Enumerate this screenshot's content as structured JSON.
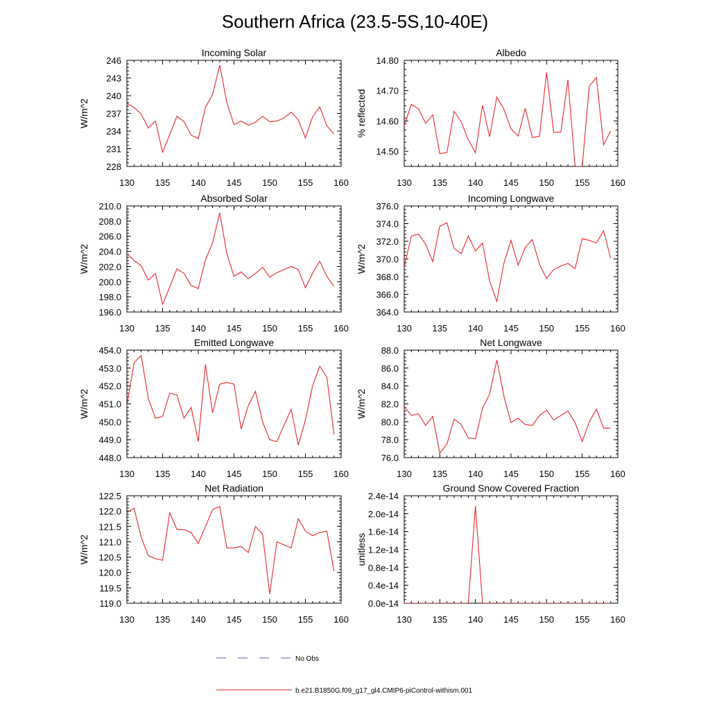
{
  "title": "Southern Africa (23.5-5S,10-40E)",
  "legend": {
    "items": [
      {
        "label": "No Obs",
        "color": "#5b5bd6",
        "style": "dashed"
      },
      {
        "label": "b.e21.B1850G.f09_g17_gl4.CMIP6-piControl-withism.001",
        "color": "#e8252a",
        "style": "solid"
      }
    ]
  },
  "chart_data": [
    {
      "type": "line",
      "title": "Incoming Solar",
      "ylabel": "W/m^2",
      "xlim": [
        130,
        160
      ],
      "ylim": [
        228,
        246
      ],
      "xticks": [
        "130",
        "135",
        "140",
        "145",
        "150",
        "155",
        "160"
      ],
      "yticks": [
        "228",
        "231",
        "234",
        "237",
        "240",
        "243",
        "246"
      ],
      "x": [
        130,
        131,
        132,
        133,
        134,
        135,
        136,
        137,
        138,
        139,
        140,
        141,
        142,
        143,
        144,
        145,
        146,
        147,
        148,
        149,
        150,
        151,
        152,
        153,
        154,
        155,
        156,
        157,
        158,
        159
      ],
      "series": [
        {
          "values": [
            238.7,
            238.0,
            236.9,
            234.5,
            235.7,
            230.4,
            233.4,
            236.5,
            235.6,
            233.3,
            232.7,
            238.0,
            240.2,
            245.2,
            238.8,
            235.1,
            235.7,
            235.0,
            235.5,
            236.5,
            235.6,
            235.7,
            236.2,
            237.2,
            235.9,
            232.8,
            236.4,
            238.1,
            234.9,
            233.5
          ]
        }
      ]
    },
    {
      "type": "line",
      "title": "Albedo",
      "ylabel": "% reflected",
      "xlim": [
        130,
        160
      ],
      "ylim": [
        14.45,
        14.8
      ],
      "xticks": [
        "130",
        "135",
        "140",
        "145",
        "150",
        "155",
        "160"
      ],
      "yticks": [
        "14.50",
        "14.60",
        "14.70",
        "14.80"
      ],
      "x": [
        130,
        131,
        132,
        133,
        134,
        135,
        136,
        137,
        138,
        139,
        140,
        141,
        142,
        143,
        144,
        145,
        146,
        147,
        148,
        149,
        150,
        151,
        152,
        153,
        154,
        155,
        156,
        157,
        158,
        159
      ],
      "series": [
        {
          "values": [
            14.585,
            14.655,
            14.64,
            14.592,
            14.62,
            14.492,
            14.496,
            14.632,
            14.597,
            14.538,
            14.495,
            14.652,
            14.548,
            14.679,
            14.639,
            14.574,
            14.55,
            14.642,
            14.545,
            14.55,
            14.76,
            14.562,
            14.564,
            14.736,
            14.45,
            14.45,
            14.715,
            14.743,
            14.521,
            14.567
          ]
        }
      ]
    },
    {
      "type": "line",
      "title": "Absorbed Solar",
      "ylabel": "W/m^2",
      "xlim": [
        130,
        160
      ],
      "ylim": [
        196,
        210
      ],
      "xticks": [
        "130",
        "135",
        "140",
        "145",
        "150",
        "155",
        "160"
      ],
      "yticks": [
        "196.0",
        "198.0",
        "200.0",
        "202.0",
        "204.0",
        "206.0",
        "208.0",
        "210.0"
      ],
      "x": [
        130,
        131,
        132,
        133,
        134,
        135,
        136,
        137,
        138,
        139,
        140,
        141,
        142,
        143,
        144,
        145,
        146,
        147,
        148,
        149,
        150,
        151,
        152,
        153,
        154,
        155,
        156,
        157,
        158,
        159
      ],
      "series": [
        {
          "values": [
            203.7,
            202.8,
            202.1,
            200.2,
            201.1,
            197.0,
            199.3,
            201.7,
            201.1,
            199.5,
            199.1,
            202.9,
            205.1,
            209.1,
            203.7,
            200.7,
            201.3,
            200.4,
            201.1,
            201.9,
            200.6,
            201.2,
            201.6,
            202.0,
            201.6,
            199.2,
            201.1,
            202.7,
            200.7,
            199.4
          ]
        }
      ]
    },
    {
      "type": "line",
      "title": "Incoming Longwave",
      "ylabel": "W/m^2",
      "xlim": [
        130,
        160
      ],
      "ylim": [
        364,
        376
      ],
      "xticks": [
        "130",
        "135",
        "140",
        "145",
        "150",
        "155",
        "160"
      ],
      "yticks": [
        "364.0",
        "366.0",
        "368.0",
        "370.0",
        "372.0",
        "374.0",
        "376.0"
      ],
      "x": [
        130,
        131,
        132,
        133,
        134,
        135,
        136,
        137,
        138,
        139,
        140,
        141,
        142,
        143,
        144,
        145,
        146,
        147,
        148,
        149,
        150,
        151,
        152,
        153,
        154,
        155,
        156,
        157,
        158,
        159
      ],
      "series": [
        {
          "values": [
            369.1,
            372.6,
            372.8,
            371.7,
            369.7,
            373.7,
            374.1,
            371.2,
            370.6,
            372.6,
            370.9,
            371.8,
            367.5,
            365.2,
            369.5,
            372.1,
            369.3,
            371.3,
            372.2,
            369.4,
            367.8,
            368.8,
            369.2,
            369.5,
            368.9,
            372.3,
            372.1,
            371.8,
            373.2,
            370.1
          ]
        }
      ]
    },
    {
      "type": "line",
      "title": "Emitted Longwave",
      "ylabel": "W/m^2",
      "xlim": [
        130,
        160
      ],
      "ylim": [
        448,
        454
      ],
      "xticks": [
        "130",
        "135",
        "140",
        "145",
        "150",
        "155",
        "160"
      ],
      "yticks": [
        "448.0",
        "449.0",
        "450.0",
        "451.0",
        "452.0",
        "453.0",
        "454.0"
      ],
      "x": [
        130,
        131,
        132,
        133,
        134,
        135,
        136,
        137,
        138,
        139,
        140,
        141,
        142,
        143,
        144,
        145,
        146,
        147,
        148,
        149,
        150,
        151,
        152,
        153,
        154,
        155,
        156,
        157,
        158,
        159
      ],
      "series": [
        {
          "values": [
            450.9,
            453.3,
            453.7,
            451.3,
            450.2,
            450.3,
            451.6,
            451.5,
            450.2,
            450.8,
            448.9,
            453.2,
            450.5,
            452.1,
            452.2,
            452.1,
            449.6,
            450.9,
            451.7,
            450.0,
            449.0,
            448.9,
            449.8,
            450.7,
            448.7,
            450.1,
            452.0,
            453.1,
            452.5,
            449.3
          ]
        }
      ]
    },
    {
      "type": "line",
      "title": "Net Longwave",
      "ylabel": "W/m^2",
      "xlim": [
        130,
        160
      ],
      "ylim": [
        76,
        88
      ],
      "xticks": [
        "130",
        "135",
        "140",
        "145",
        "150",
        "155",
        "160"
      ],
      "yticks": [
        "76.0",
        "78.0",
        "80.0",
        "82.0",
        "84.0",
        "86.0",
        "88.0"
      ],
      "x": [
        130,
        131,
        132,
        133,
        134,
        135,
        136,
        137,
        138,
        139,
        140,
        141,
        142,
        143,
        144,
        145,
        146,
        147,
        148,
        149,
        150,
        151,
        152,
        153,
        154,
        155,
        156,
        157,
        158,
        159
      ],
      "series": [
        {
          "values": [
            81.7,
            80.7,
            80.9,
            79.6,
            80.6,
            76.5,
            77.5,
            80.3,
            79.7,
            78.2,
            78.1,
            81.5,
            83.1,
            86.9,
            82.9,
            79.9,
            80.4,
            79.7,
            79.6,
            80.7,
            81.3,
            80.2,
            80.7,
            81.2,
            79.9,
            77.8,
            80.0,
            81.4,
            79.3,
            79.3
          ]
        }
      ]
    },
    {
      "type": "line",
      "title": "Net Radiation",
      "ylabel": "W/m^2",
      "xlim": [
        130,
        160
      ],
      "ylim": [
        119,
        122.5
      ],
      "xticks": [
        "130",
        "135",
        "140",
        "145",
        "150",
        "155",
        "160"
      ],
      "yticks": [
        "119.0",
        "119.5",
        "120.0",
        "120.5",
        "121.0",
        "121.5",
        "122.0",
        "122.5"
      ],
      "x": [
        130,
        131,
        132,
        133,
        134,
        135,
        136,
        137,
        138,
        139,
        140,
        141,
        142,
        143,
        144,
        145,
        146,
        147,
        148,
        149,
        150,
        151,
        152,
        153,
        154,
        155,
        156,
        157,
        158,
        159
      ],
      "series": [
        {
          "values": [
            121.95,
            122.1,
            121.15,
            120.55,
            120.45,
            120.4,
            121.95,
            121.4,
            121.4,
            121.3,
            120.95,
            121.5,
            122.05,
            122.15,
            120.8,
            120.8,
            120.85,
            120.65,
            121.5,
            121.25,
            119.3,
            121.0,
            120.9,
            120.8,
            121.75,
            121.35,
            121.2,
            121.3,
            121.35,
            120.05
          ]
        }
      ]
    },
    {
      "type": "line",
      "title": "Ground Snow Covered Fraction",
      "ylabel": "unitless",
      "xlim": [
        130,
        160
      ],
      "ylim": [
        0,
        2.4e-14
      ],
      "xticks": [
        "130",
        "135",
        "140",
        "145",
        "150",
        "155",
        "160"
      ],
      "yticks": [
        "0.0e-14",
        "0.4e-14",
        "0.8e-14",
        "1.2e-14",
        "1.6e-14",
        "2.0e-14",
        "2.4e-14"
      ],
      "x": [
        130,
        131,
        132,
        133,
        134,
        135,
        136,
        137,
        138,
        139,
        140,
        141,
        142,
        143,
        144,
        145,
        146,
        147,
        148,
        149,
        150,
        151,
        152,
        153,
        154,
        155,
        156,
        157,
        158,
        159
      ],
      "series": [
        {
          "values": [
            0,
            0,
            0,
            0,
            0,
            0,
            0,
            0,
            0,
            0,
            2.17e-14,
            0,
            0,
            0,
            0,
            0,
            0,
            0,
            0,
            0,
            0,
            0,
            0,
            0,
            0,
            0,
            0,
            0,
            0,
            0
          ]
        }
      ]
    }
  ]
}
